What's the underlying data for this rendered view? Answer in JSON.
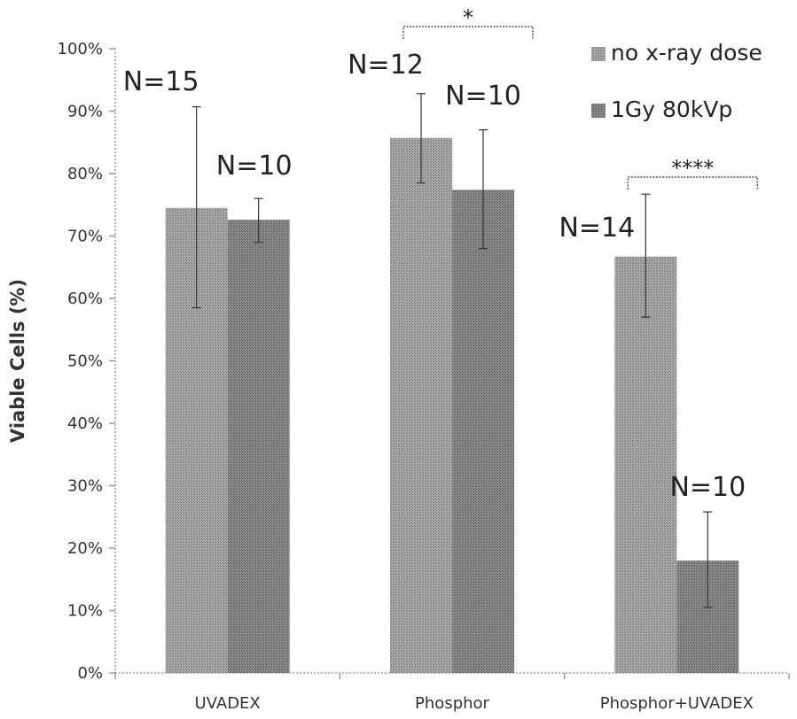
{
  "chart_data": {
    "type": "bar",
    "ylabel": "Viable Cells (%)",
    "xlabel": "",
    "ylim": [
      0,
      100
    ],
    "yticks": [
      0,
      10,
      20,
      30,
      40,
      50,
      60,
      70,
      80,
      90,
      100
    ],
    "ytick_labels": [
      "0%",
      "10%",
      "20%",
      "30%",
      "40%",
      "50%",
      "60%",
      "70%",
      "80%",
      "90%",
      "100%"
    ],
    "categories": [
      "UVADEX",
      "Phosphor",
      "Phosphor+UVADEX"
    ],
    "series": [
      {
        "name": "no x-ray dose",
        "values": [
          74.5,
          85.7,
          66.7
        ],
        "err_low": [
          58.5,
          78.5,
          57.0
        ],
        "err_high": [
          90.7,
          92.8,
          76.7
        ],
        "n_labels": [
          "N=15",
          "N=12",
          "N=14"
        ],
        "color": "#9a9a9a"
      },
      {
        "name": "1Gy 80kVp",
        "values": [
          72.6,
          77.4,
          18.0
        ],
        "err_low": [
          69.0,
          68.0,
          10.5
        ],
        "err_high": [
          76.0,
          87.0,
          25.8
        ],
        "n_labels": [
          "N=10",
          "N=10",
          "N=10"
        ],
        "color": "#7c7c7c"
      }
    ],
    "significance": [
      {
        "category_index": 1,
        "label": "*"
      },
      {
        "category_index": 2,
        "label": "****"
      }
    ],
    "legend_position": "top-right",
    "grid": false
  }
}
